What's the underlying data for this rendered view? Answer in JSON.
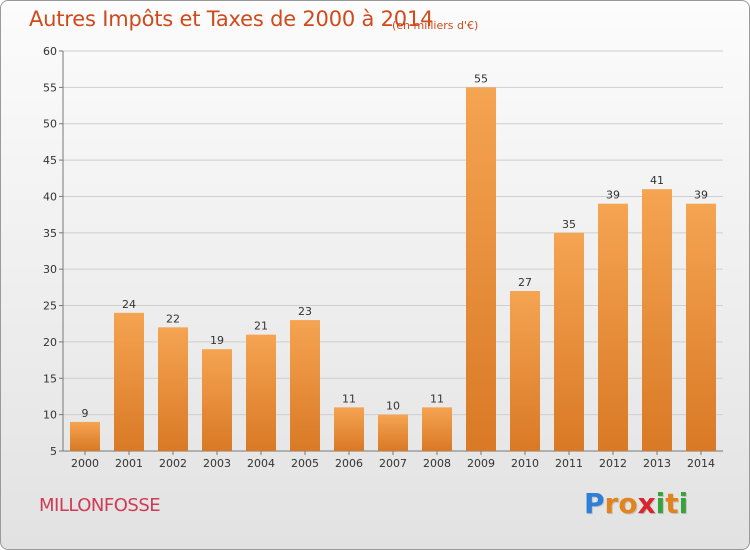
{
  "chart_data": {
    "type": "bar",
    "title": "Autres Impôts et Taxes de 2000 à 2014",
    "subtitle": "(en milliers d'€)",
    "categories": [
      "2000",
      "2001",
      "2002",
      "2003",
      "2004",
      "2005",
      "2006",
      "2007",
      "2008",
      "2009",
      "2010",
      "2011",
      "2012",
      "2013",
      "2014"
    ],
    "values": [
      9,
      24,
      22,
      19,
      21,
      23,
      11,
      10,
      11,
      55,
      27,
      35,
      39,
      41,
      39
    ],
    "ylim": [
      5,
      60
    ],
    "yticks": [
      5,
      10,
      15,
      20,
      25,
      30,
      35,
      40,
      45,
      50,
      55,
      60
    ],
    "grid": true,
    "bar_color_top": "#f5a452",
    "bar_color_bottom": "#d97925"
  },
  "footer": {
    "location": "MILLONFOSSE",
    "logo_letters": [
      "P",
      "r",
      "o",
      "x",
      "i",
      "t",
      "i"
    ],
    "logo_colors": [
      "#2f7fd6",
      "#e2841e",
      "#e2841e",
      "#d8262e",
      "#3aa23a",
      "#e2841e",
      "#3aa23a"
    ]
  }
}
